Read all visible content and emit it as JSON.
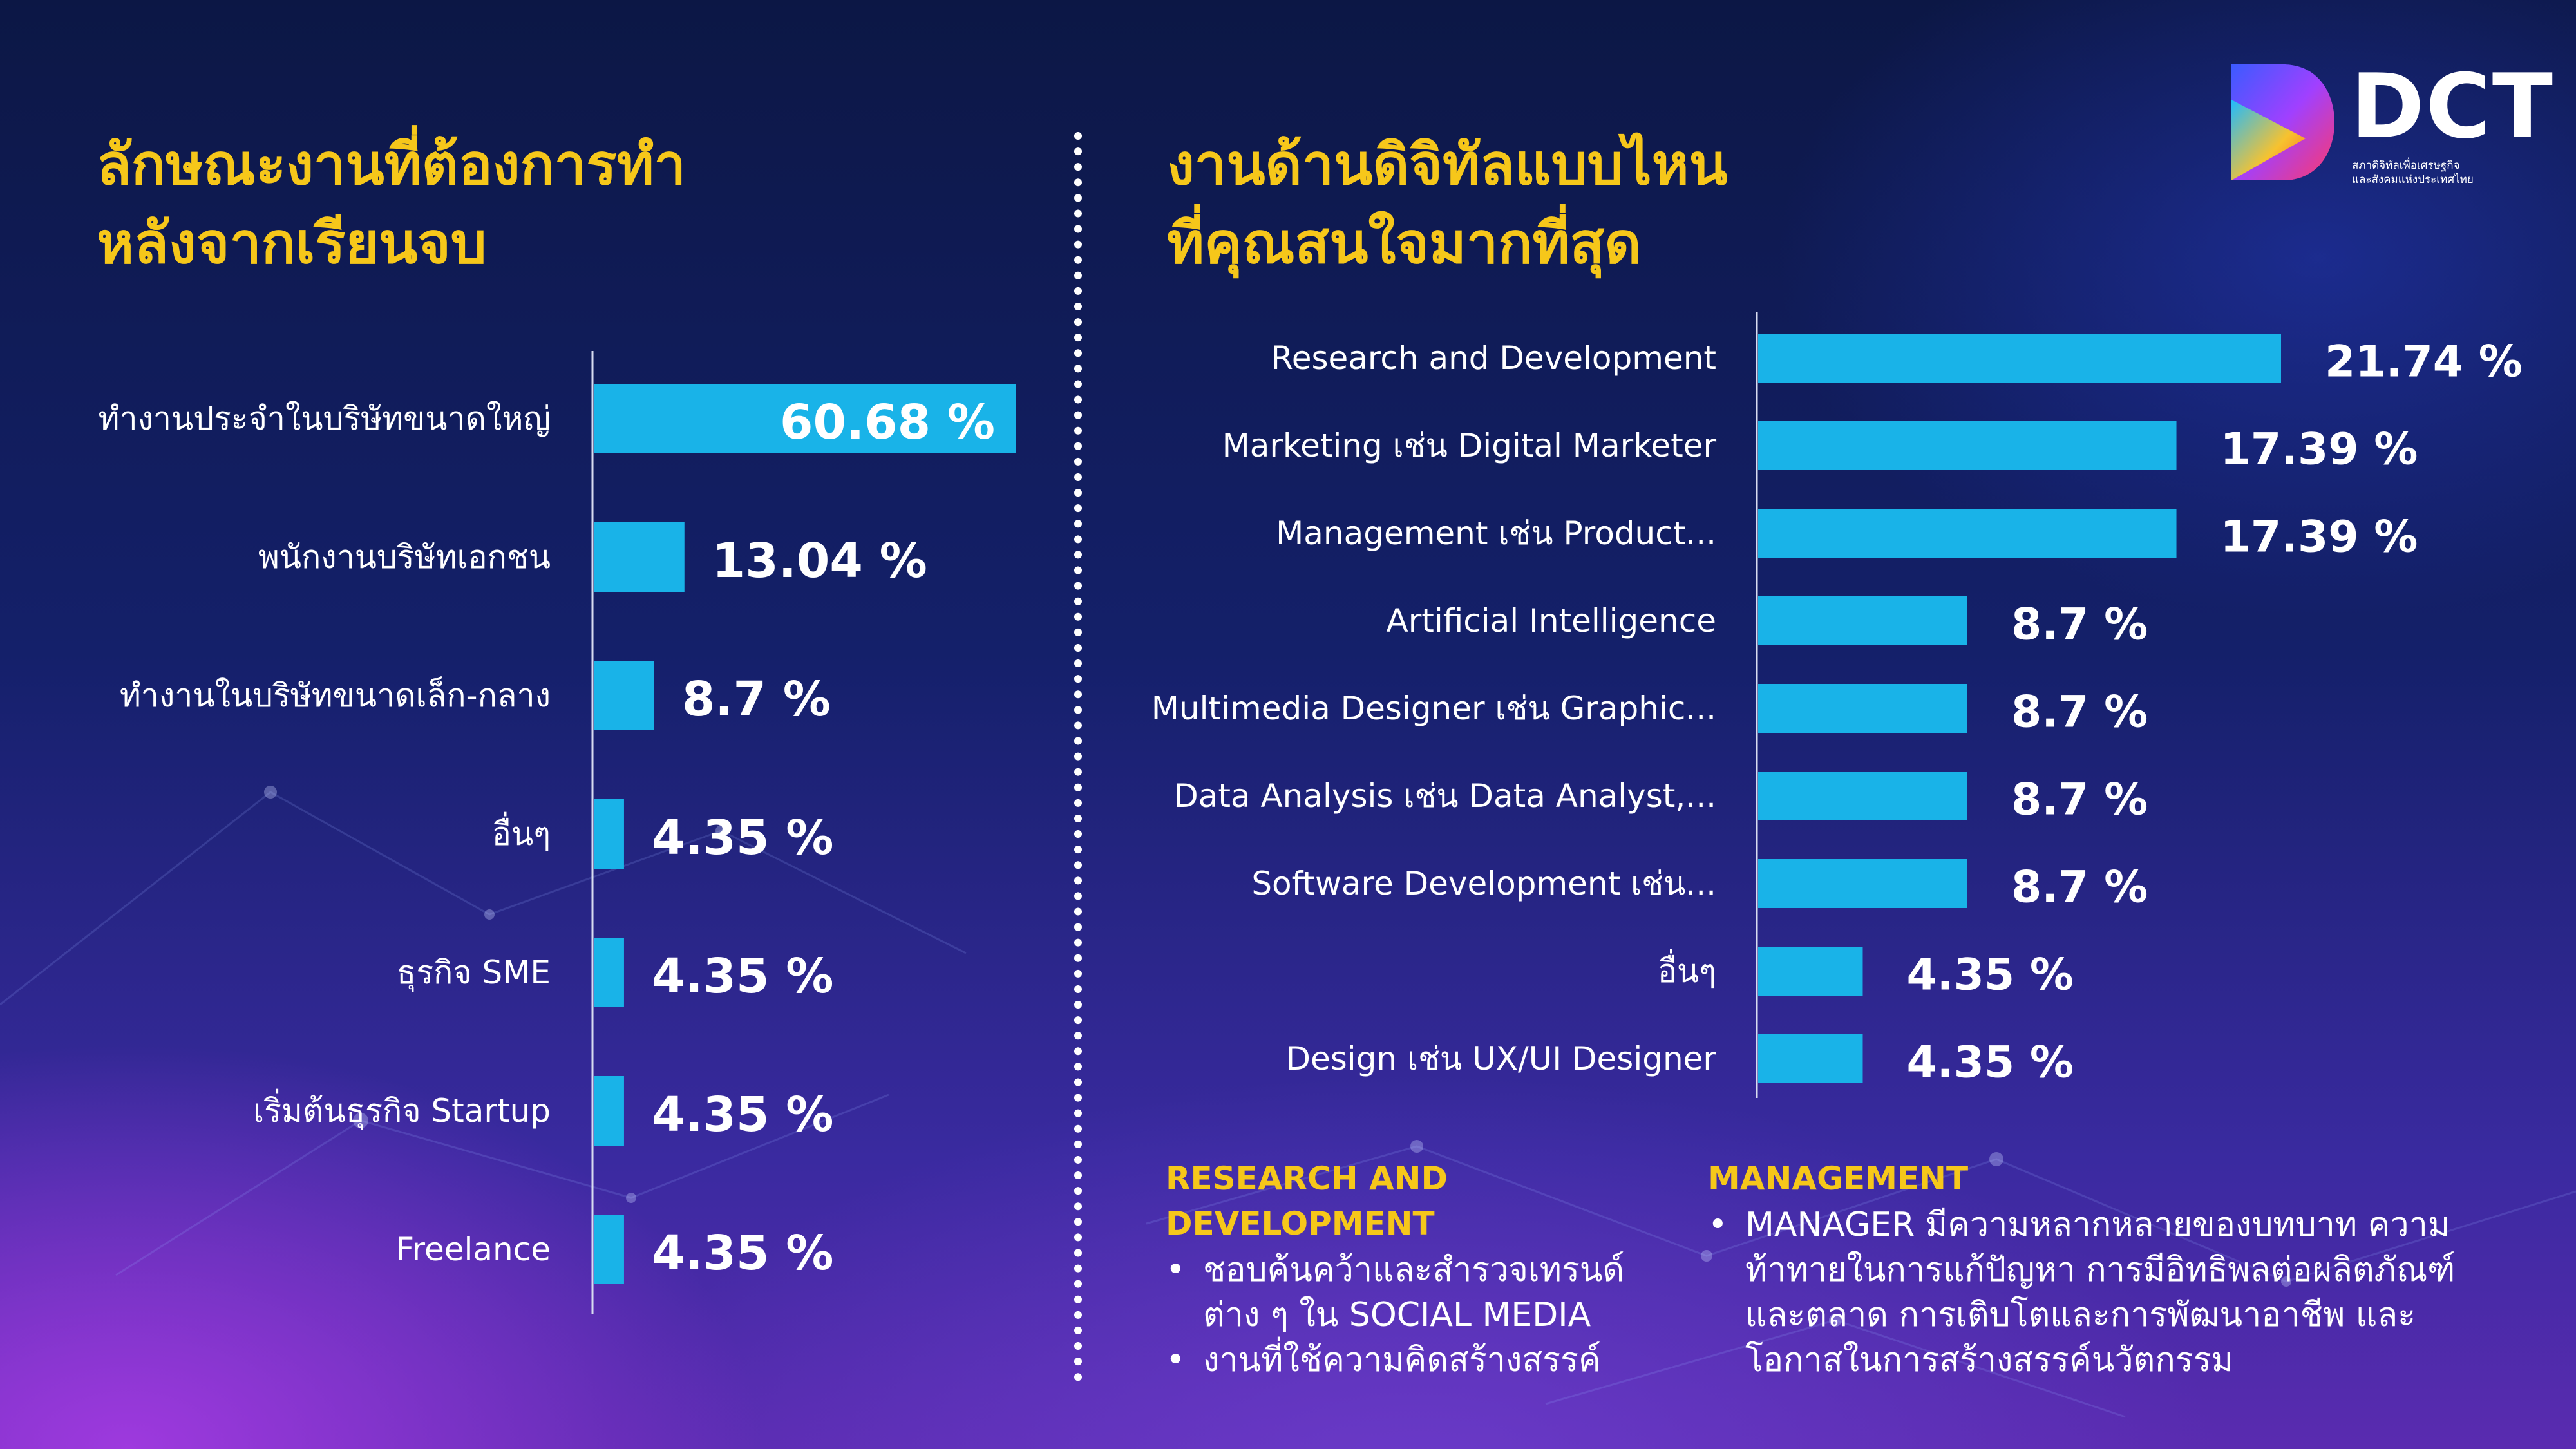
{
  "brand": {
    "name": "DCT",
    "subtitle_line1": "สภาดิจิทัลเพื่อเศรษฐกิจ",
    "subtitle_line2": "และสังคมแห่งประเทศไทย",
    "colors": {
      "title": "#f6c71a",
      "bar": "#19b3e8",
      "text": "#ffffff"
    }
  },
  "left": {
    "title": "ลักษณะงานที่ต้องการทำ\nหลังจากเรียนจบ"
  },
  "right": {
    "title": "งานด้านดิจิทัลแบบไหน\nที่คุณสนใจมากที่สุด"
  },
  "chart_data": [
    {
      "type": "bar",
      "orientation": "horizontal",
      "title": "ลักษณะงานที่ต้องการทำ หลังจากเรียนจบ",
      "categories": [
        "ทำงานประจำในบริษัทขนาดใหญ่",
        "พนักงานบริษัทเอกชน",
        "ทำงานในบริษัทขนาดเล็ก-กลาง",
        "อื่นๆ",
        "ธุรกิจ SME",
        "เริ่มต้นธุรกิจ Startup",
        "Freelance"
      ],
      "values": [
        60.68,
        13.04,
        8.7,
        4.35,
        4.35,
        4.35,
        4.35
      ],
      "value_labels": [
        "60.68 %",
        "13.04 %",
        "8.7 %",
        "4.35 %",
        "4.35 %",
        "4.35 %",
        "4.35 %"
      ],
      "xlim": [
        0,
        60.68
      ]
    },
    {
      "type": "bar",
      "orientation": "horizontal",
      "title": "งานด้านดิจิทัลแบบไหน ที่คุณสนใจมากที่สุด",
      "categories": [
        "Research and Development",
        "Marketing เช่น Digital Marketer",
        "Management เช่น Product...",
        "Artificial Intelligence",
        "Multimedia Designer เช่น Graphic...",
        "Data Analysis เช่น Data Analyst,...",
        "Software Development เช่น...",
        "อื่นๆ",
        "Design เช่น UX/UI Designer"
      ],
      "values": [
        21.74,
        17.39,
        17.39,
        8.7,
        8.7,
        8.7,
        8.7,
        4.35,
        4.35
      ],
      "value_labels": [
        "21.74 %",
        "17.39 %",
        "17.39 %",
        "8.7 %",
        "8.7 %",
        "8.7 %",
        "8.7 %",
        "4.35 %",
        "4.35 %"
      ],
      "xlim": [
        0,
        21.74
      ]
    }
  ],
  "notes": {
    "rd": {
      "heading": "RESEARCH AND\nDEVELOPMENT",
      "items": [
        "ชอบค้นคว้าและสำรวจเทรนด์ต่าง ๆ ใน SOCIAL MEDIA",
        "งานที่ใช้ความคิดสร้างสรรค์"
      ]
    },
    "management": {
      "heading": "MANAGEMENT",
      "items": [
        "MANAGER มีความหลากหลายของบทบาท ความท้าทายในการแก้ปัญหา การมีอิทธิพลต่อผลิตภัณฑ์และตลาด การเติบโตและการพัฒนาอาชีพ และโอกาสในการสร้างสรรค์นวัตกรรม"
      ]
    }
  }
}
